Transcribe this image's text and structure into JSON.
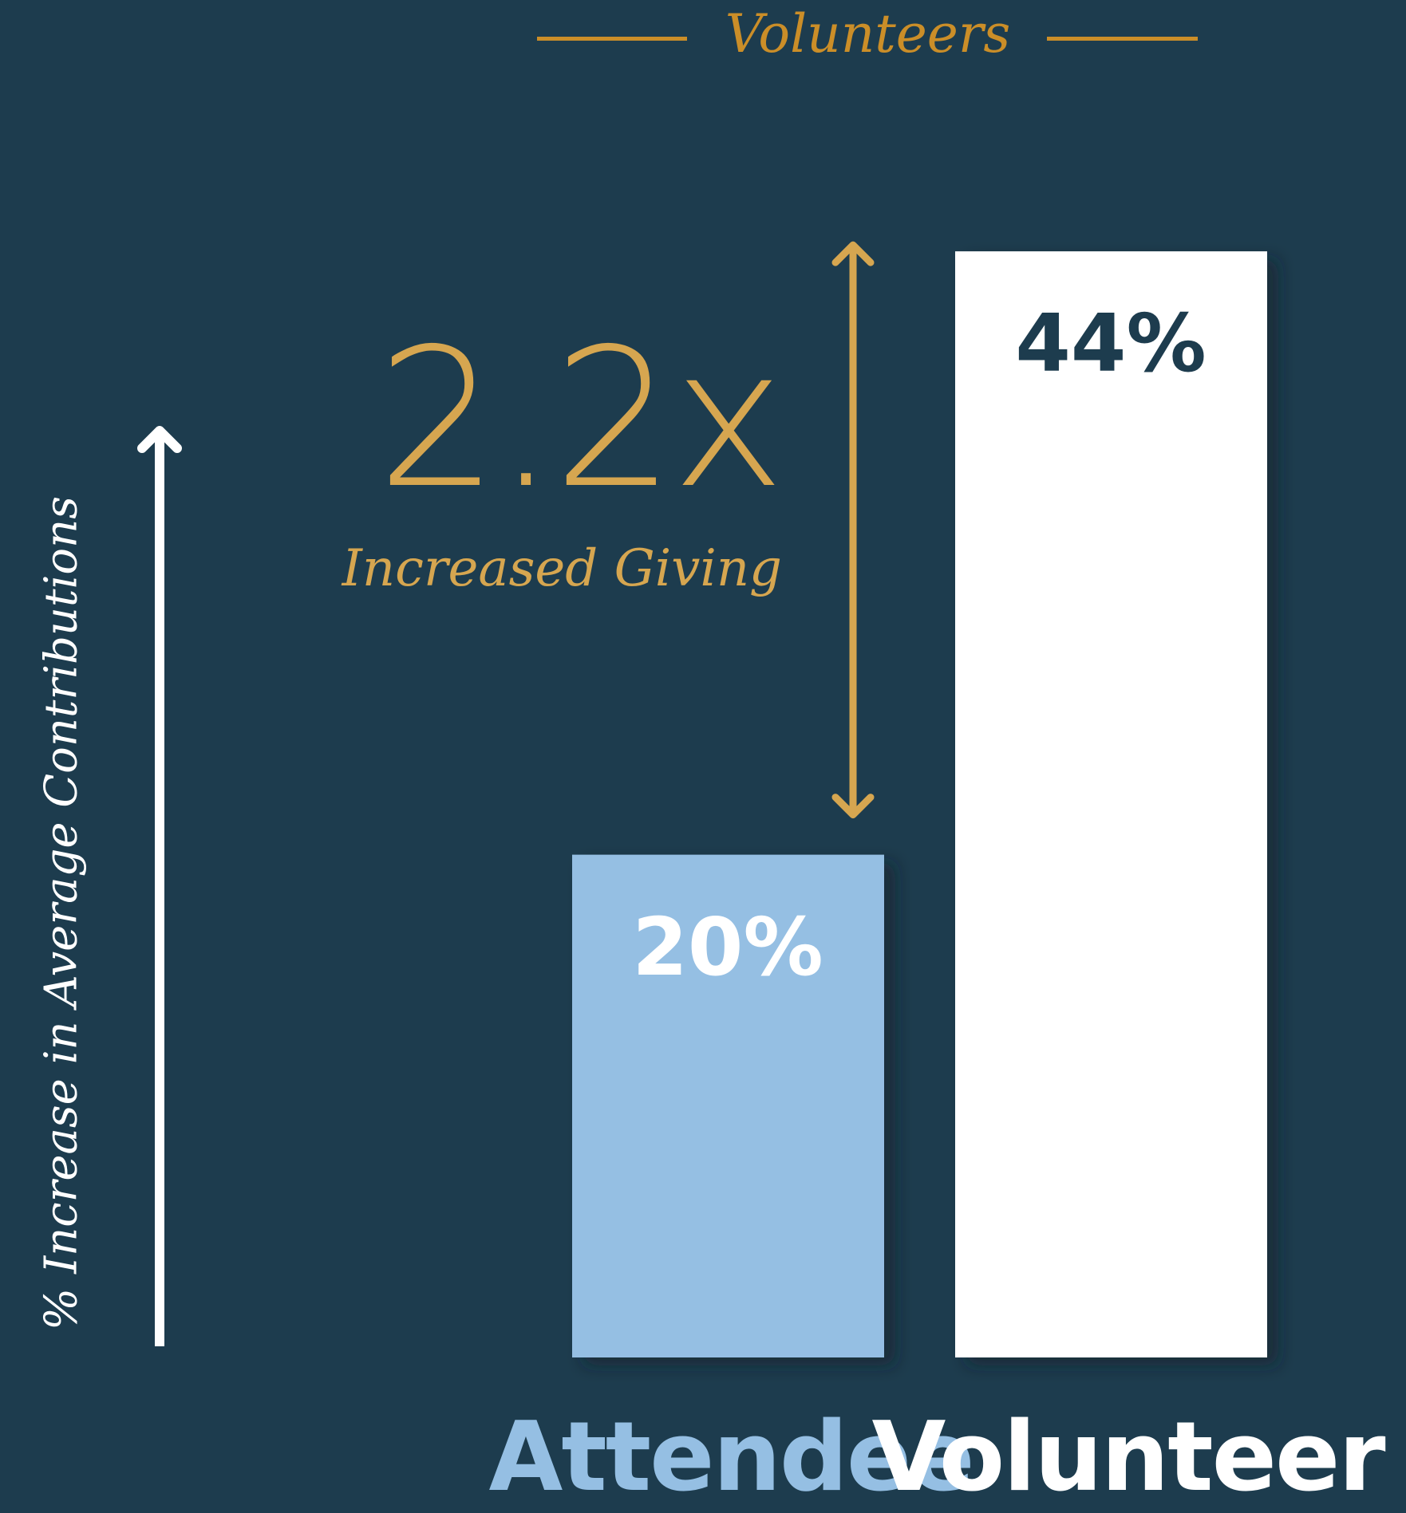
{
  "legend": {
    "label": "Volunteers",
    "color": "#cb8e28"
  },
  "annotation": {
    "multiplier": "2.2x",
    "caption": "Increased Giving",
    "color": "#d6a650"
  },
  "colors": {
    "background": "#1d3c4e",
    "attendee_bar": "#95bfe3",
    "volunteer_bar": "#ffffff",
    "axis": "#ffffff"
  },
  "chart_data": {
    "type": "bar",
    "categories": [
      "Attendee",
      "Volunteer"
    ],
    "values": [
      20,
      44
    ],
    "value_labels": [
      "20%",
      "44%"
    ],
    "ylabel": "% Increase in Average Contributions",
    "ylim": [
      0,
      48
    ],
    "grid": false,
    "legend": "top-center",
    "bar_colors": [
      "#95bfe3",
      "#ffffff"
    ],
    "label_colors": [
      "#ffffff",
      "#1d3c4e"
    ],
    "category_colors": [
      "#95bfe3",
      "#ffffff"
    ]
  }
}
